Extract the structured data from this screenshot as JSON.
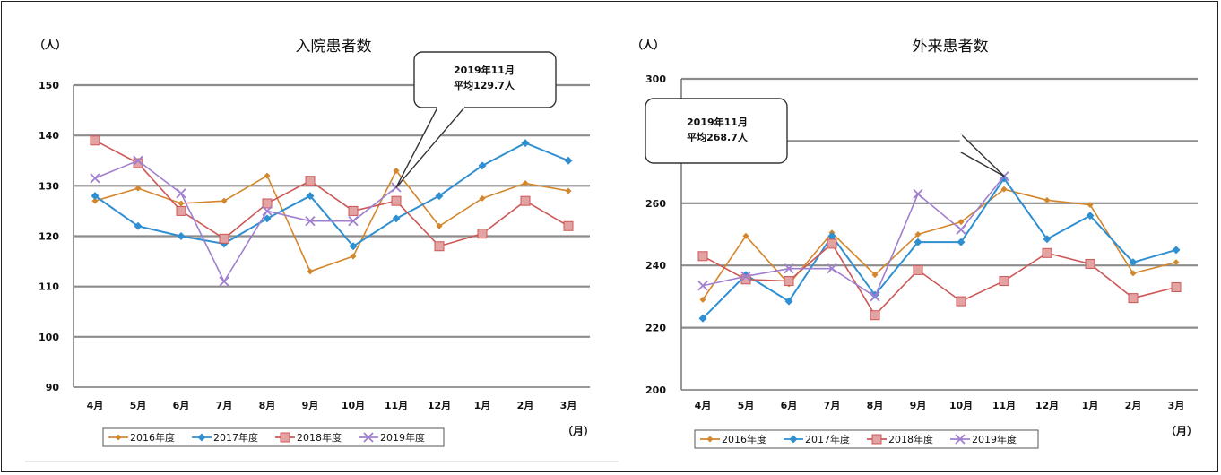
{
  "colors": {
    "s2016": "#d4862c",
    "s2017": "#2f8fd1",
    "s2018": "#cd5757",
    "s2019": "#a07fcf"
  },
  "chart_data": [
    {
      "type": "line",
      "title": "入院患者数",
      "ylabel": "（人）",
      "xlabel": "（月）",
      "ylim": [
        90,
        150
      ],
      "yticks": [
        "90",
        "100",
        "110",
        "120",
        "130",
        "140",
        "150"
      ],
      "grid": true,
      "legend": "bottom",
      "categories": [
        "4月",
        "5月",
        "6月",
        "7月",
        "8月",
        "9月",
        "10月",
        "11月",
        "12月",
        "1月",
        "2月",
        "3月"
      ],
      "series": [
        {
          "name": "2016年度",
          "values": [
            127,
            129.5,
            126.5,
            127,
            132,
            113,
            116,
            133,
            122,
            127.5,
            130.5,
            129
          ]
        },
        {
          "name": "2017年度",
          "values": [
            128,
            122,
            120,
            118.5,
            123.5,
            128,
            118,
            123.5,
            128,
            134,
            138.5,
            135
          ]
        },
        {
          "name": "2018年度",
          "values": [
            139,
            134.5,
            125,
            119.5,
            126.5,
            131,
            125,
            127,
            118,
            120.5,
            127,
            122
          ]
        },
        {
          "name": "2019年度",
          "values": [
            131.5,
            135,
            128.5,
            111,
            125,
            123,
            123,
            129.7,
            null,
            null,
            null,
            null
          ]
        }
      ],
      "callout": {
        "line1": "2019年11月",
        "line2": "平均129.7人"
      }
    },
    {
      "type": "line",
      "title": "外来患者数",
      "ylabel": "（人）",
      "xlabel": "（月）",
      "ylim": [
        200,
        300
      ],
      "yticks": [
        "200",
        "220",
        "240",
        "260",
        "280",
        "300"
      ],
      "grid": true,
      "legend": "bottom",
      "categories": [
        "4月",
        "5月",
        "6月",
        "7月",
        "8月",
        "9月",
        "10月",
        "11月",
        "12月",
        "1月",
        "2月",
        "3月"
      ],
      "series": [
        {
          "name": "2016年度",
          "values": [
            229,
            249.5,
            234,
            250.5,
            237,
            250,
            254,
            264.5,
            261,
            259.5,
            237.5,
            241
          ]
        },
        {
          "name": "2017年度",
          "values": [
            223,
            237,
            228.5,
            249.5,
            230.5,
            247.5,
            247.5,
            268,
            248.5,
            256,
            241,
            245
          ]
        },
        {
          "name": "2018年度",
          "values": [
            243,
            235.5,
            235,
            247,
            224,
            238.5,
            228.5,
            235,
            244,
            240.5,
            229.5,
            233
          ]
        },
        {
          "name": "2019年度",
          "values": [
            233.5,
            236.5,
            239,
            239,
            230,
            263,
            251.5,
            268.7,
            null,
            null,
            null,
            null
          ]
        }
      ],
      "callout": {
        "line1": "2019年11月",
        "line2": "平均268.7人"
      }
    }
  ]
}
